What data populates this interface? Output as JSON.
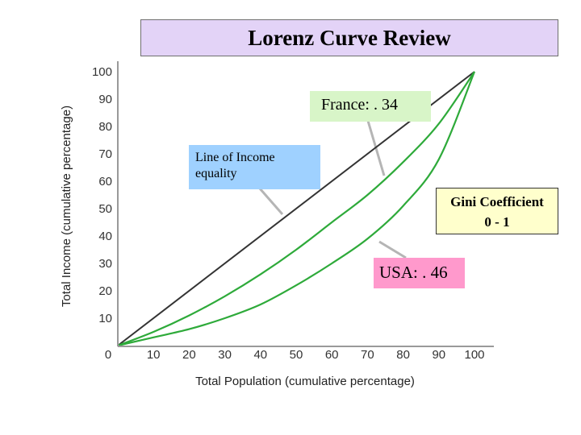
{
  "title": "Lorenz Curve Review",
  "chart_data": {
    "type": "line",
    "xlabel": "Total Population (cumulative percentage)",
    "ylabel": "Total Income (cumulative percentage)",
    "xlim": [
      0,
      100
    ],
    "ylim": [
      0,
      100
    ],
    "x_ticks": [
      "0",
      "10",
      "20",
      "30",
      "40",
      "50",
      "60",
      "70",
      "80",
      "90",
      "100"
    ],
    "y_ticks": [
      "0",
      "10",
      "20",
      "30",
      "40",
      "50",
      "60",
      "70",
      "80",
      "90",
      "100"
    ],
    "grid": false,
    "series": [
      {
        "color": "#333333",
        "x": [
          0,
          100
        ],
        "y": [
          0,
          100
        ]
      },
      {
        "color": "#2eaa3a",
        "x": [
          0,
          10,
          20,
          30,
          40,
          50,
          60,
          70,
          80,
          90,
          100
        ],
        "y": [
          0,
          5,
          11,
          18,
          26,
          35,
          45,
          55,
          67,
          81,
          100
        ]
      },
      {
        "color": "#2eaa3a",
        "x": [
          0,
          10,
          20,
          30,
          40,
          50,
          60,
          70,
          80,
          90,
          100
        ],
        "y": [
          0,
          3,
          6,
          10,
          15,
          22,
          30,
          39,
          51,
          68,
          100
        ]
      }
    ],
    "annotations": [
      {
        "key": "france",
        "text": "France:   . 34",
        "color": "#d8f5c8"
      },
      {
        "key": "equality",
        "text_lines": [
          "Line of Income",
          "equality"
        ],
        "color": "#9fd1ff"
      },
      {
        "key": "gini",
        "text_lines": [
          "Gini Coefficient",
          "0 - 1"
        ],
        "color": "#ffffcc"
      },
      {
        "key": "usa",
        "text": "USA:  . 46",
        "color": "#ff99cc"
      }
    ]
  }
}
